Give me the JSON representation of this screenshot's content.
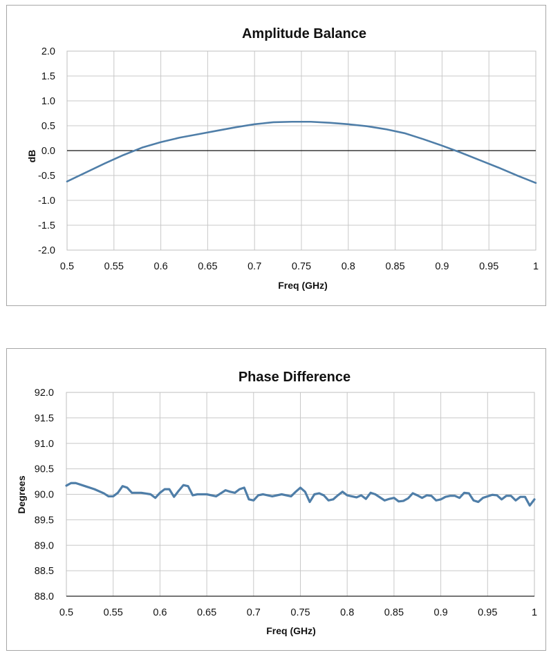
{
  "chart_data": [
    {
      "type": "line",
      "title": "Amplitude Balance",
      "xlabel": "Freq (GHz)",
      "ylabel": "dB",
      "xlim": [
        0.5,
        1.0
      ],
      "ylim": [
        -2.0,
        2.0
      ],
      "x_ticks": [
        "0.5",
        "0.55",
        "0.6",
        "0.65",
        "0.7",
        "0.75",
        "0.8",
        "0.85",
        "0.9",
        "0.95",
        "1"
      ],
      "y_ticks": [
        "2.0",
        "1.5",
        "1.0",
        "0.5",
        "0.0",
        "-0.5",
        "-1.0",
        "-1.5",
        "-2.0"
      ],
      "grid": true,
      "zero_line": true,
      "series": [
        {
          "name": "Amplitude Balance",
          "color": "#4f7ea8",
          "x": [
            0.5,
            0.52,
            0.54,
            0.56,
            0.58,
            0.6,
            0.62,
            0.64,
            0.66,
            0.68,
            0.7,
            0.72,
            0.74,
            0.76,
            0.78,
            0.8,
            0.82,
            0.84,
            0.86,
            0.88,
            0.9,
            0.92,
            0.94,
            0.96,
            0.98,
            1.0
          ],
          "y": [
            -0.62,
            -0.44,
            -0.26,
            -0.09,
            0.06,
            0.17,
            0.26,
            0.33,
            0.4,
            0.47,
            0.53,
            0.57,
            0.58,
            0.58,
            0.56,
            0.53,
            0.49,
            0.43,
            0.35,
            0.23,
            0.1,
            -0.04,
            -0.19,
            -0.34,
            -0.5,
            -0.65
          ]
        }
      ]
    },
    {
      "type": "line",
      "title": "Phase Difference",
      "xlabel": "Freq (GHz)",
      "ylabel": "Degrees",
      "xlim": [
        0.5,
        1.0
      ],
      "ylim": [
        88.0,
        92.0
      ],
      "x_ticks": [
        "0.5",
        "0.55",
        "0.6",
        "0.65",
        "0.7",
        "0.75",
        "0.8",
        "0.85",
        "0.9",
        "0.95",
        "1"
      ],
      "y_ticks": [
        "92.0",
        "91.5",
        "91.0",
        "90.5",
        "90.0",
        "89.5",
        "89.0",
        "88.5",
        "88.0"
      ],
      "grid": true,
      "series": [
        {
          "name": "Phase Difference",
          "color": "#4f7ea8",
          "x": [
            0.5,
            0.505,
            0.51,
            0.52,
            0.53,
            0.54,
            0.545,
            0.55,
            0.555,
            0.56,
            0.565,
            0.57,
            0.58,
            0.59,
            0.595,
            0.6,
            0.605,
            0.61,
            0.615,
            0.62,
            0.625,
            0.63,
            0.635,
            0.64,
            0.65,
            0.66,
            0.67,
            0.675,
            0.68,
            0.685,
            0.69,
            0.695,
            0.7,
            0.705,
            0.71,
            0.72,
            0.73,
            0.74,
            0.745,
            0.75,
            0.755,
            0.76,
            0.765,
            0.77,
            0.775,
            0.78,
            0.785,
            0.79,
            0.795,
            0.8,
            0.805,
            0.81,
            0.815,
            0.82,
            0.825,
            0.83,
            0.84,
            0.845,
            0.85,
            0.855,
            0.86,
            0.865,
            0.87,
            0.875,
            0.88,
            0.885,
            0.89,
            0.895,
            0.9,
            0.905,
            0.91,
            0.915,
            0.92,
            0.925,
            0.93,
            0.935,
            0.94,
            0.945,
            0.95,
            0.955,
            0.96,
            0.965,
            0.97,
            0.975,
            0.98,
            0.985,
            0.99,
            0.995,
            1.0
          ],
          "y": [
            90.17,
            90.22,
            90.22,
            90.16,
            90.1,
            90.02,
            89.96,
            89.96,
            90.03,
            90.16,
            90.13,
            90.03,
            90.03,
            90.0,
            89.93,
            90.03,
            90.1,
            90.1,
            89.95,
            90.07,
            90.18,
            90.16,
            89.98,
            90.0,
            90.0,
            89.96,
            90.08,
            90.05,
            90.03,
            90.1,
            90.13,
            89.9,
            89.88,
            89.98,
            90.0,
            89.96,
            90.0,
            89.96,
            90.05,
            90.13,
            90.05,
            89.85,
            90.0,
            90.02,
            89.98,
            89.88,
            89.9,
            89.98,
            90.05,
            89.98,
            89.96,
            89.94,
            89.98,
            89.91,
            90.03,
            90.0,
            89.88,
            89.91,
            89.93,
            89.86,
            89.87,
            89.92,
            90.02,
            89.98,
            89.93,
            89.98,
            89.97,
            89.88,
            89.9,
            89.95,
            89.97,
            89.97,
            89.93,
            90.03,
            90.02,
            89.88,
            89.85,
            89.93,
            89.96,
            89.99,
            89.98,
            89.9,
            89.97,
            89.97,
            89.88,
            89.95,
            89.95,
            89.78,
            89.9
          ]
        }
      ]
    }
  ]
}
